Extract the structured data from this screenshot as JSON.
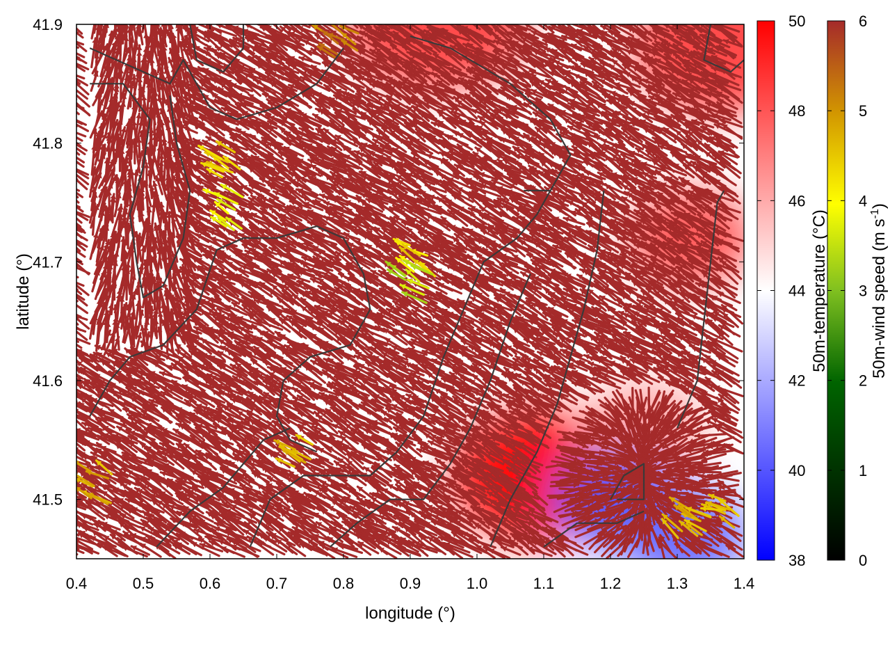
{
  "chart_data": {
    "type": "heatmap",
    "xlabel": "longitude (°)",
    "ylabel": "latitude (°)",
    "xlim": [
      0.4,
      1.4
    ],
    "ylim": [
      41.45,
      41.9
    ],
    "x_ticks": [
      "0.4",
      "0.5",
      "0.6",
      "0.7",
      "0.8",
      "0.9",
      "1.0",
      "1.1",
      "1.2",
      "1.3",
      "1.4"
    ],
    "y_ticks": [
      "41.5",
      "41.6",
      "41.7",
      "41.8",
      "41.9"
    ],
    "temperature_colorbar": {
      "label": "50m-temperature (°C)",
      "range": [
        38,
        50
      ],
      "ticks": [
        "38",
        "40",
        "42",
        "44",
        "46",
        "48",
        "50"
      ],
      "colors": [
        "#0000ff",
        "#ffffff",
        "#ff0000"
      ]
    },
    "wind_colorbar": {
      "label_main": "50m-wind speed (m s",
      "label_sup": "-1",
      "label_end": ")",
      "range": [
        0,
        6
      ],
      "ticks": [
        "0",
        "1",
        "2",
        "3",
        "4",
        "5",
        "6"
      ],
      "colors": [
        "#000000",
        "#006400",
        "#80c020",
        "#ffff00",
        "#d29600",
        "#a52a2a"
      ]
    },
    "temperature_regions": [
      {
        "lon": 0.94,
        "lat": 41.9,
        "value": 48.5
      },
      {
        "lon": 1.37,
        "lat": 41.88,
        "value": 48.5
      },
      {
        "lon": 1.32,
        "lat": 41.72,
        "value": 48
      },
      {
        "lon": 1.1,
        "lat": 41.52,
        "value": 50
      },
      {
        "lon": 1.25,
        "lat": 41.56,
        "value": 46
      },
      {
        "lon": 1.21,
        "lat": 41.5,
        "value": 40
      },
      {
        "lon": 1.31,
        "lat": 41.47,
        "value": 40.5
      }
    ],
    "contours": [
      [
        [
          0.42,
          41.88
        ],
        [
          0.5,
          41.86
        ],
        [
          0.54,
          41.85
        ],
        [
          0.56,
          41.87
        ],
        [
          0.6,
          41.83
        ],
        [
          0.64,
          41.82
        ],
        [
          0.7,
          41.83
        ],
        [
          0.76,
          41.85
        ],
        [
          0.8,
          41.88
        ]
      ],
      [
        [
          0.42,
          41.85
        ],
        [
          0.47,
          41.85
        ],
        [
          0.51,
          41.82
        ],
        [
          0.5,
          41.78
        ],
        [
          0.48,
          41.74
        ],
        [
          0.49,
          41.7
        ],
        [
          0.5,
          41.67
        ],
        [
          0.53,
          41.68
        ],
        [
          0.56,
          41.72
        ],
        [
          0.57,
          41.76
        ],
        [
          0.55,
          41.8
        ],
        [
          0.54,
          41.84
        ]
      ],
      [
        [
          0.42,
          41.57
        ],
        [
          0.45,
          41.6
        ],
        [
          0.48,
          41.62
        ],
        [
          0.53,
          41.63
        ],
        [
          0.58,
          41.66
        ],
        [
          0.61,
          41.71
        ],
        [
          0.65,
          41.72
        ],
        [
          0.7,
          41.72
        ],
        [
          0.76,
          41.73
        ],
        [
          0.8,
          41.72
        ],
        [
          0.83,
          41.69
        ],
        [
          0.84,
          41.66
        ],
        [
          0.81,
          41.63
        ],
        [
          0.75,
          41.62
        ],
        [
          0.71,
          41.6
        ],
        [
          0.7,
          41.57
        ],
        [
          0.72,
          41.55
        ],
        [
          0.76,
          41.54
        ]
      ],
      [
        [
          0.52,
          41.46
        ],
        [
          0.57,
          41.49
        ],
        [
          0.62,
          41.51
        ],
        [
          0.65,
          41.53
        ],
        [
          0.68,
          41.55
        ],
        [
          0.72,
          41.56
        ]
      ],
      [
        [
          0.66,
          41.46
        ],
        [
          0.69,
          41.5
        ],
        [
          0.74,
          41.52
        ],
        [
          0.79,
          41.52
        ],
        [
          0.84,
          41.52
        ],
        [
          0.88,
          41.54
        ],
        [
          0.92,
          41.57
        ],
        [
          0.95,
          41.62
        ],
        [
          0.98,
          41.66
        ],
        [
          1.01,
          41.7
        ],
        [
          1.06,
          41.72
        ],
        [
          1.09,
          41.74
        ],
        [
          1.12,
          41.77
        ],
        [
          1.14,
          41.79
        ],
        [
          1.11,
          41.82
        ],
        [
          1.05,
          41.85
        ],
        [
          0.96,
          41.88
        ],
        [
          0.9,
          41.89
        ]
      ],
      [
        [
          1.02,
          41.46
        ],
        [
          1.05,
          41.5
        ],
        [
          1.09,
          41.54
        ],
        [
          1.12,
          41.58
        ],
        [
          1.14,
          41.62
        ],
        [
          1.16,
          41.66
        ],
        [
          1.18,
          41.71
        ],
        [
          1.19,
          41.76
        ]
      ],
      [
        [
          0.78,
          41.46
        ],
        [
          0.82,
          41.48
        ],
        [
          0.87,
          41.5
        ],
        [
          0.92,
          41.5
        ],
        [
          0.96,
          41.53
        ],
        [
          0.99,
          41.56
        ],
        [
          1.02,
          41.6
        ],
        [
          1.05,
          41.65
        ],
        [
          1.08,
          41.69
        ]
      ],
      [
        [
          1.1,
          41.46
        ],
        [
          1.15,
          41.48
        ],
        [
          1.21,
          41.48
        ],
        [
          1.25,
          41.49
        ]
      ],
      [
        [
          1.3,
          41.56
        ],
        [
          1.33,
          41.6
        ],
        [
          1.34,
          41.65
        ],
        [
          1.35,
          41.7
        ],
        [
          1.36,
          41.75
        ],
        [
          1.37,
          41.76
        ]
      ],
      [
        [
          1.2,
          41.5
        ],
        [
          1.22,
          41.52
        ],
        [
          1.25,
          41.53
        ],
        [
          1.25,
          41.5
        ],
        [
          1.21,
          41.5
        ]
      ],
      [
        [
          1.07,
          41.76
        ],
        [
          1.11,
          41.76
        ]
      ],
      [
        [
          0.57,
          41.9
        ],
        [
          0.58,
          41.87
        ],
        [
          0.62,
          41.86
        ],
        [
          0.65,
          41.88
        ],
        [
          0.65,
          41.9
        ]
      ],
      [
        [
          1.35,
          41.9
        ],
        [
          1.34,
          41.87
        ],
        [
          1.38,
          41.86
        ],
        [
          1.4,
          41.87
        ]
      ]
    ],
    "wind_streams": [
      {
        "lon": 0.5,
        "lat": 41.75,
        "speed": 6
      },
      {
        "lon": 0.7,
        "lat": 41.8,
        "speed": 6
      },
      {
        "lon": 1.0,
        "lat": 41.75,
        "speed": 6
      },
      {
        "lon": 1.25,
        "lat": 41.52,
        "speed": 6
      }
    ],
    "wind_slow_patches": [
      {
        "lon": 0.63,
        "lat": 41.78,
        "speed": 4.2
      },
      {
        "lon": 0.64,
        "lat": 41.74,
        "speed": 3.5
      },
      {
        "lon": 0.92,
        "lat": 41.7,
        "speed": 4
      },
      {
        "lon": 0.91,
        "lat": 41.68,
        "speed": 3
      },
      {
        "lon": 0.44,
        "lat": 41.51,
        "speed": 4.5
      },
      {
        "lon": 0.73,
        "lat": 41.54,
        "speed": 4.3
      },
      {
        "lon": 0.8,
        "lat": 41.88,
        "speed": 5
      },
      {
        "lon": 1.32,
        "lat": 41.48,
        "speed": 4.5
      },
      {
        "lon": 1.37,
        "lat": 41.49,
        "speed": 4.2
      }
    ]
  }
}
